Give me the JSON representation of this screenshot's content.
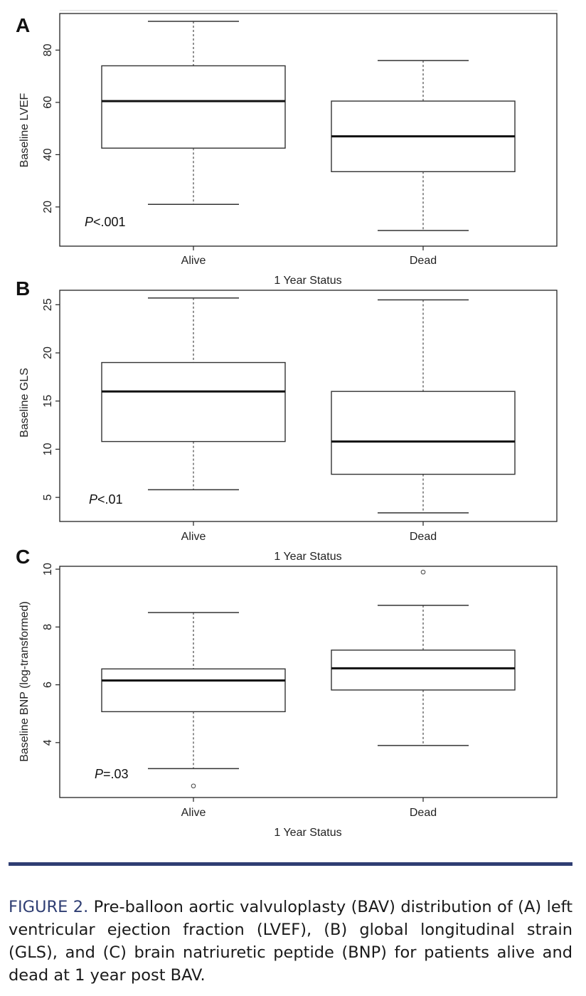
{
  "chart_data": [
    {
      "panel": "A",
      "type": "box",
      "xlabel": "1 Year Status",
      "ylabel": "Baseline LVEF",
      "ylim": [
        5,
        94
      ],
      "yticks": [
        "20",
        "40",
        "60",
        "80"
      ],
      "categories": [
        "Alive",
        "Dead"
      ],
      "p_symbol": "P",
      "p_rest": "<.001",
      "series": [
        {
          "name": "Alive",
          "min": 21,
          "q1": 42.5,
          "median": 60.5,
          "q3": 74,
          "max": 91,
          "outliers": []
        },
        {
          "name": "Dead",
          "min": 11,
          "q1": 33.5,
          "median": 47,
          "q3": 60.5,
          "max": 76,
          "outliers": []
        }
      ]
    },
    {
      "panel": "B",
      "type": "box",
      "xlabel": "1 Year Status",
      "ylabel": "Baseline GLS",
      "ylim": [
        2.5,
        26.5
      ],
      "yticks": [
        "5",
        "10",
        "15",
        "20",
        "25"
      ],
      "categories": [
        "Alive",
        "Dead"
      ],
      "p_symbol": "P",
      "p_rest": "<.01",
      "series": [
        {
          "name": "Alive",
          "min": 5.8,
          "q1": 10.8,
          "median": 16,
          "q3": 19,
          "max": 25.7,
          "outliers": []
        },
        {
          "name": "Dead",
          "min": 3.4,
          "q1": 7.4,
          "median": 10.8,
          "q3": 16,
          "max": 25.5,
          "outliers": []
        }
      ]
    },
    {
      "panel": "C",
      "type": "box",
      "xlabel": "1 Year Status",
      "ylabel": "Baseline BNP (log-transformed)",
      "ylim": [
        2.1,
        10.1
      ],
      "yticks": [
        "4",
        "6",
        "8",
        "10"
      ],
      "categories": [
        "Alive",
        "Dead"
      ],
      "p_symbol": "P",
      "p_rest": "=.03",
      "series": [
        {
          "name": "Alive",
          "min": 3.1,
          "q1": 5.07,
          "median": 6.15,
          "q3": 6.55,
          "max": 8.5,
          "outliers": [
            2.5
          ]
        },
        {
          "name": "Dead",
          "min": 3.9,
          "q1": 5.82,
          "median": 6.57,
          "q3": 7.2,
          "max": 8.75,
          "outliers": [
            9.9
          ]
        }
      ]
    }
  ],
  "caption": {
    "label": "FIGURE 2.",
    "text": " Pre-balloon aortic valvuloplasty (BAV) distribution of (A) left ventricular ejection fraction (LVEF), (B) global longitudinal strain (GLS), and (C) brain natriuretic peptide (BNP) for patients alive and dead at 1 year post BAV."
  },
  "colors": {
    "caption_accent": "#2f3e73"
  }
}
